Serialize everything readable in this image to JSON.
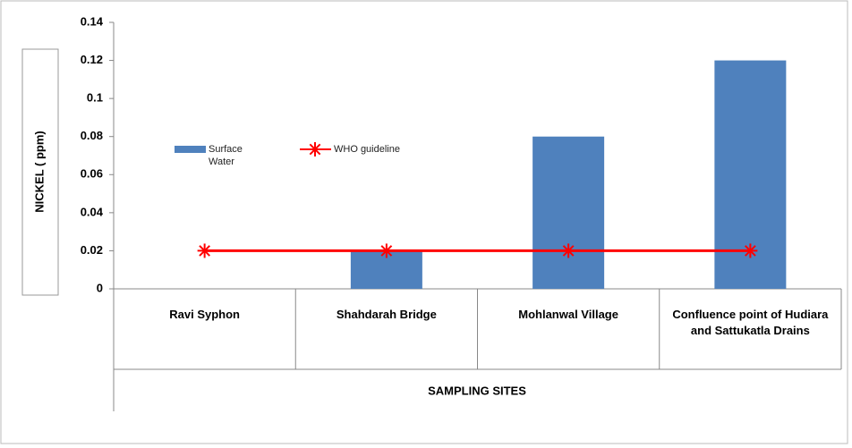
{
  "chart_data": {
    "type": "bar",
    "categories": [
      "Ravi Syphon",
      "Shahdarah Bridge",
      "Mohlanwal Village",
      "Confluence point of Hudiara and Sattukatla Drains"
    ],
    "series": [
      {
        "name": "Surface Water",
        "type": "bar",
        "color": "#4f81bd",
        "values": [
          0,
          0.02,
          0.08,
          0.12
        ]
      },
      {
        "name": "WHO guideline",
        "type": "line",
        "color": "#ff0000",
        "values": [
          0.02,
          0.02,
          0.02,
          0.02
        ]
      }
    ],
    "y_label": "NICKEL ( ppm)",
    "x_label": "SAMPLING SITES",
    "ylim": [
      0,
      0.14
    ],
    "yticks": [
      0,
      0.02,
      0.04,
      0.06,
      0.08,
      0.1,
      0.12,
      0.14
    ],
    "grid": false
  }
}
